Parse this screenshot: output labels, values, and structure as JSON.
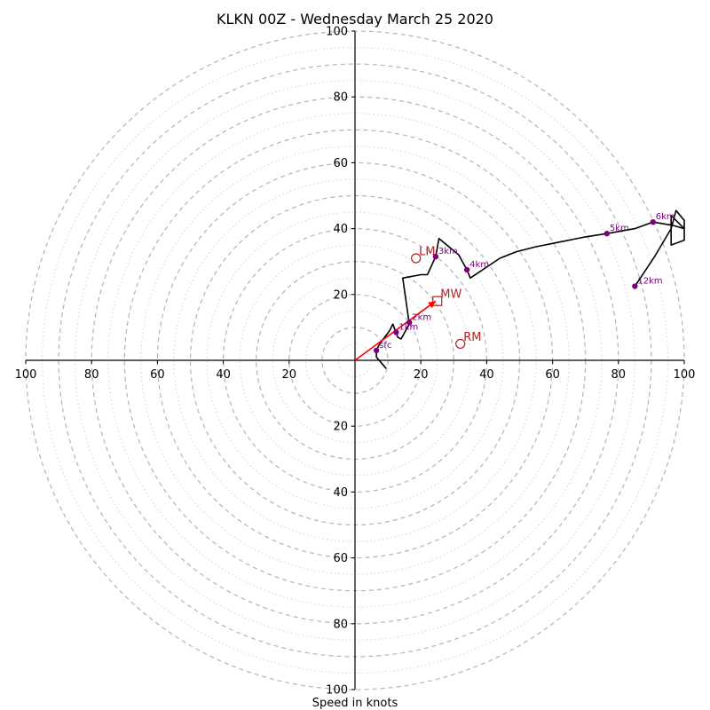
{
  "chart_data": {
    "type": "line",
    "title": "KLKN 00Z - Wednesday March 25 2020",
    "xlabel": "Speed in knots",
    "range": [
      -100,
      100
    ],
    "ring_step_major": 10,
    "ring_step_minor": 5,
    "grid": true,
    "x_ticks": [
      "100",
      "80",
      "60",
      "40",
      "20",
      "20",
      "40",
      "60",
      "80",
      "100"
    ],
    "x_tick_values": [
      -100,
      -80,
      -60,
      -40,
      -20,
      20,
      40,
      60,
      80,
      100
    ],
    "y_ticks": [
      "100",
      "80",
      "60",
      "40",
      "20",
      "20",
      "40",
      "60",
      "80",
      "100"
    ],
    "y_tick_values": [
      100,
      80,
      60,
      40,
      20,
      -20,
      -40,
      -60,
      -80,
      -100
    ],
    "series": [
      {
        "color": "#000000",
        "points": [
          [
            9.5,
            -2.5
          ],
          [
            6.5,
            1.0
          ],
          [
            6.5,
            3.0
          ],
          [
            7.5,
            5.0
          ],
          [
            10.5,
            9.0
          ],
          [
            11.5,
            11.0
          ],
          [
            13.0,
            7.0
          ],
          [
            14.0,
            6.5
          ],
          [
            16.5,
            11.0
          ],
          [
            14.5,
            25.0
          ],
          [
            20.0,
            26.0
          ],
          [
            22.0,
            26.0
          ],
          [
            24.5,
            31.5
          ],
          [
            25.5,
            37.0
          ],
          [
            31.5,
            32.0
          ],
          [
            34.0,
            27.5
          ],
          [
            35.0,
            25.0
          ],
          [
            44.0,
            31.0
          ],
          [
            49.0,
            33.0
          ],
          [
            55.0,
            34.5
          ],
          [
            70.0,
            37.5
          ],
          [
            76.5,
            38.5
          ],
          [
            85.0,
            40.0
          ],
          [
            90.5,
            42.0
          ],
          [
            96.5,
            41.0
          ],
          [
            100.0,
            40.0
          ],
          [
            98.0,
            42.0
          ],
          [
            96.0,
            44.0
          ],
          [
            96.0,
            35.0
          ],
          [
            100.0,
            36.5
          ],
          [
            100.0,
            42.5
          ],
          [
            97.5,
            45.5
          ],
          [
            96.0,
            40.0
          ],
          [
            91.0,
            31.5
          ],
          [
            88.0,
            27.0
          ],
          [
            85.0,
            22.5
          ]
        ]
      },
      {
        "color": "#ff0000",
        "points": [
          [
            0,
            0
          ],
          [
            24.5,
            18.0
          ]
        ]
      }
    ],
    "height_markers": [
      {
        "label": "sfc",
        "x": 6.5,
        "y": 3.0
      },
      {
        "label": "1km",
        "x": 12.5,
        "y": 8.5
      },
      {
        "label": "2km",
        "x": 16.5,
        "y": 11.5
      },
      {
        "label": "3km",
        "x": 24.5,
        "y": 31.5
      },
      {
        "label": "4km",
        "x": 34.0,
        "y": 27.5
      },
      {
        "label": "5km",
        "x": 76.5,
        "y": 38.5
      },
      {
        "label": "6km",
        "x": 90.5,
        "y": 42.0
      },
      {
        "label": "12km",
        "x": 85.0,
        "y": 22.5
      }
    ],
    "storm_markers": [
      {
        "label": "LM",
        "x": 18.5,
        "y": 31.0,
        "shape": "circle"
      },
      {
        "label": "MW",
        "x": 25.0,
        "y": 18.0,
        "shape": "square"
      },
      {
        "label": "RM",
        "x": 32.0,
        "y": 5.0,
        "shape": "circle"
      }
    ]
  }
}
